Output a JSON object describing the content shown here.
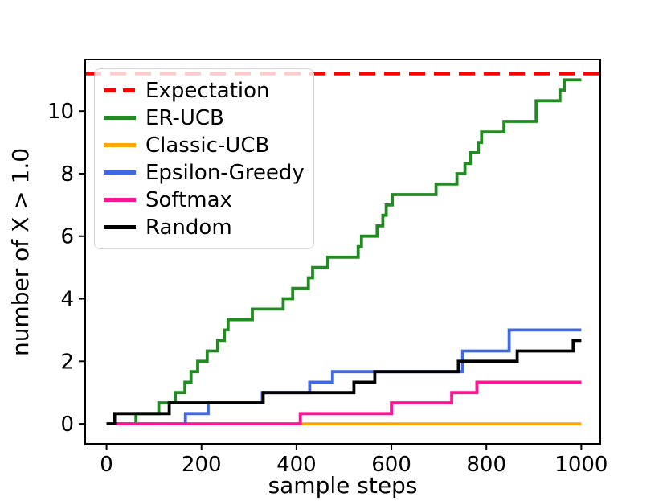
{
  "figure": {
    "background": "#ffffff"
  },
  "chart_data": {
    "type": "step-line",
    "title": "",
    "xlabel": "sample steps",
    "ylabel": "number of X > 1.0",
    "xlim": [
      -45,
      1040
    ],
    "ylim": [
      -0.64,
      11.65
    ],
    "xticks": [
      0,
      200,
      400,
      600,
      800,
      1000
    ],
    "yticks": [
      0,
      2,
      4,
      6,
      8,
      10
    ],
    "grid": false,
    "legend_position": "upper left",
    "series": [
      {
        "name": "Expectation",
        "color": "#ff0000",
        "linestyle": "dashed",
        "type": "hline",
        "y": 11.2
      },
      {
        "name": "ER-UCB",
        "color": "#228b22",
        "linestyle": "solid",
        "type": "step",
        "points": [
          [
            0,
            0
          ],
          [
            62,
            0.33
          ],
          [
            110,
            0.67
          ],
          [
            145,
            1.0
          ],
          [
            165,
            1.33
          ],
          [
            178,
            1.67
          ],
          [
            192,
            2.0
          ],
          [
            212,
            2.33
          ],
          [
            234,
            2.67
          ],
          [
            248,
            3.0
          ],
          [
            256,
            3.33
          ],
          [
            307,
            3.67
          ],
          [
            372,
            4.0
          ],
          [
            392,
            4.33
          ],
          [
            425,
            4.67
          ],
          [
            434,
            5.0
          ],
          [
            466,
            5.33
          ],
          [
            530,
            5.67
          ],
          [
            537,
            6.0
          ],
          [
            570,
            6.33
          ],
          [
            582,
            6.67
          ],
          [
            589,
            7.0
          ],
          [
            602,
            7.33
          ],
          [
            694,
            7.67
          ],
          [
            738,
            8.0
          ],
          [
            755,
            8.33
          ],
          [
            766,
            8.67
          ],
          [
            783,
            9.0
          ],
          [
            790,
            9.33
          ],
          [
            837,
            9.67
          ],
          [
            905,
            10.33
          ],
          [
            955,
            10.67
          ],
          [
            964,
            11.0
          ],
          [
            1000,
            11.0
          ]
        ]
      },
      {
        "name": "Classic-UCB",
        "color": "#ffa500",
        "linestyle": "solid",
        "type": "step",
        "points": [
          [
            0,
            0
          ],
          [
            1000,
            0
          ]
        ]
      },
      {
        "name": "Epsilon-Greedy",
        "color": "#4169e1",
        "linestyle": "solid",
        "type": "step",
        "points": [
          [
            0,
            0
          ],
          [
            166,
            0.33
          ],
          [
            214,
            0.67
          ],
          [
            328,
            1.0
          ],
          [
            428,
            1.33
          ],
          [
            476,
            1.67
          ],
          [
            750,
            2.33
          ],
          [
            848,
            3.0
          ],
          [
            1000,
            3.0
          ]
        ]
      },
      {
        "name": "Softmax",
        "color": "#ff1493",
        "linestyle": "solid",
        "type": "step",
        "points": [
          [
            0,
            0
          ],
          [
            408,
            0.33
          ],
          [
            600,
            0.67
          ],
          [
            727,
            1.0
          ],
          [
            780,
            1.33
          ],
          [
            1000,
            1.33
          ]
        ]
      },
      {
        "name": "Random",
        "color": "#000000",
        "linestyle": "solid",
        "type": "step",
        "points": [
          [
            0,
            0
          ],
          [
            17,
            0.33
          ],
          [
            132,
            0.67
          ],
          [
            330,
            1.0
          ],
          [
            521,
            1.33
          ],
          [
            565,
            1.67
          ],
          [
            741,
            2.0
          ],
          [
            865,
            2.33
          ],
          [
            983,
            2.67
          ],
          [
            1000,
            2.67
          ]
        ]
      }
    ]
  }
}
